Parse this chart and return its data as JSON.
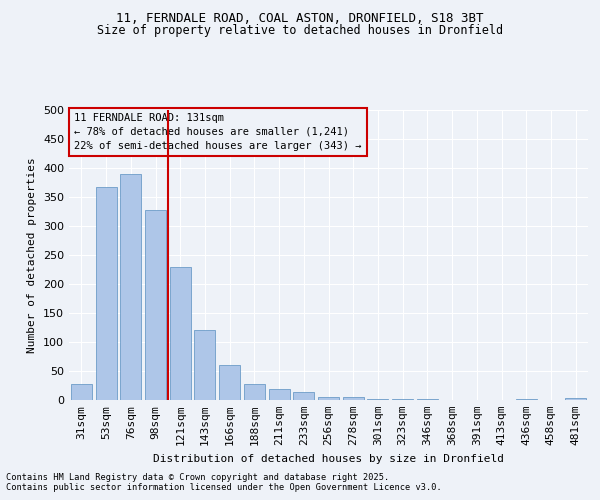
{
  "title1": "11, FERNDALE ROAD, COAL ASTON, DRONFIELD, S18 3BT",
  "title2": "Size of property relative to detached houses in Dronfield",
  "xlabel": "Distribution of detached houses by size in Dronfield",
  "ylabel": "Number of detached properties",
  "categories": [
    "31sqm",
    "53sqm",
    "76sqm",
    "98sqm",
    "121sqm",
    "143sqm",
    "166sqm",
    "188sqm",
    "211sqm",
    "233sqm",
    "256sqm",
    "278sqm",
    "301sqm",
    "323sqm",
    "346sqm",
    "368sqm",
    "391sqm",
    "413sqm",
    "436sqm",
    "458sqm",
    "481sqm"
  ],
  "values": [
    27,
    367,
    390,
    328,
    230,
    121,
    60,
    27,
    19,
    14,
    6,
    5,
    2,
    1,
    1,
    0,
    0,
    0,
    1,
    0,
    3
  ],
  "bar_color": "#aec6e8",
  "bar_edge_color": "#5a8fc0",
  "vline_bin_index": 4,
  "vline_color": "#cc0000",
  "annotation_box_text": "11 FERNDALE ROAD: 131sqm\n← 78% of detached houses are smaller (1,241)\n22% of semi-detached houses are larger (343) →",
  "annotation_box_color": "#cc0000",
  "footer1": "Contains HM Land Registry data © Crown copyright and database right 2025.",
  "footer2": "Contains public sector information licensed under the Open Government Licence v3.0.",
  "bg_color": "#eef2f8",
  "grid_color": "#ffffff",
  "ylim": [
    0,
    500
  ],
  "yticks": [
    0,
    50,
    100,
    150,
    200,
    250,
    300,
    350,
    400,
    450,
    500
  ]
}
